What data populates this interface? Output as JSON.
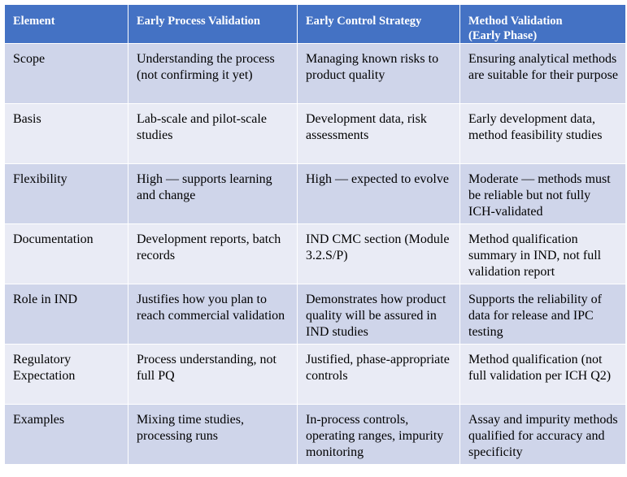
{
  "table": {
    "headers": [
      "Element",
      "Early Process Validation",
      "Early Control Strategy",
      "Method Validation\n(Early Phase)"
    ],
    "rows": [
      [
        "Scope",
        "Understanding the process (not confirming it yet)",
        "Managing known risks to product quality",
        "Ensuring analytical methods are suitable for their purpose"
      ],
      [
        "Basis",
        "Lab-scale and pilot-scale studies",
        "Development data, risk assessments",
        "Early development data, method feasibility studies"
      ],
      [
        "Flexibility",
        "High — supports learning and change",
        "High — expected to evolve",
        "Moderate — methods must be reliable but not fully ICH-validated"
      ],
      [
        "Documentation",
        "Development reports, batch records",
        "IND CMC section (Module 3.2.S/P)",
        "Method qualification summary in IND, not full validation report"
      ],
      [
        "Role in IND",
        "Justifies how you plan to reach commercial validation",
        "Demonstrates how product quality will be assured in IND studies",
        "Supports the reliability of data for release and IPC testing"
      ],
      [
        "Regulatory Expectation",
        "Process understanding, not full PQ",
        "Justified, phase-appropriate controls",
        "Method qualification (not full validation per ICH Q2)"
      ],
      [
        "Examples",
        "Mixing time studies, processing  runs",
        "In-process controls, operating ranges, impurity monitoring",
        "Assay and impurity methods qualified for accuracy and specificity"
      ]
    ]
  },
  "colors": {
    "header_bg": "#4472c4",
    "header_text": "#ffffff",
    "row_odd_bg": "#cfd5ea",
    "row_even_bg": "#e9ebf5"
  }
}
